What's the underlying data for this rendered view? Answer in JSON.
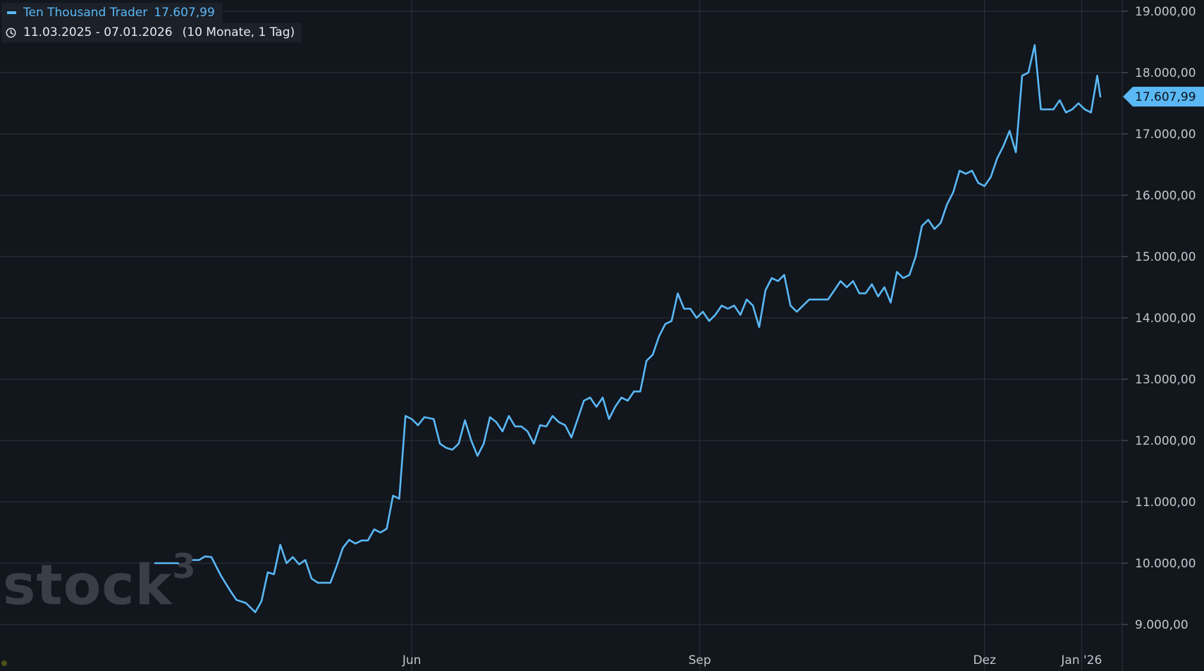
{
  "legend": {
    "series_name": "Ten Thousand Trader",
    "series_value": "17.607,99"
  },
  "range": {
    "dates": "11.03.2025 - 07.01.2026",
    "duration": "(10 Monate, 1 Tag)"
  },
  "watermark": {
    "text": "stock",
    "superscript": "3"
  },
  "colors": {
    "background": "#12161d",
    "grid": "#2f343d",
    "line": "#5ab8f5",
    "axis_text": "#c3c7cd",
    "watermark": "#3a3f47"
  },
  "chart_data": {
    "type": "line",
    "series": [
      {
        "name": "Ten Thousand Trader",
        "points": [
          [
            "2025-03-11",
            10000
          ],
          [
            "2025-03-14",
            10000
          ],
          [
            "2025-03-18",
            10000
          ],
          [
            "2025-03-20",
            9970
          ],
          [
            "2025-03-22",
            10050
          ],
          [
            "2025-03-25",
            10050
          ],
          [
            "2025-03-27",
            10110
          ],
          [
            "2025-03-29",
            10100
          ],
          [
            "2025-04-01",
            9800
          ],
          [
            "2025-04-04",
            9550
          ],
          [
            "2025-04-06",
            9400
          ],
          [
            "2025-04-09",
            9350
          ],
          [
            "2025-04-12",
            9200
          ],
          [
            "2025-04-14",
            9380
          ],
          [
            "2025-04-16",
            9850
          ],
          [
            "2025-04-18",
            9820
          ],
          [
            "2025-04-20",
            10300
          ],
          [
            "2025-04-22",
            10000
          ],
          [
            "2025-04-24",
            10100
          ],
          [
            "2025-04-26",
            9980
          ],
          [
            "2025-04-28",
            10050
          ],
          [
            "2025-04-30",
            9750
          ],
          [
            "2025-05-02",
            9680
          ],
          [
            "2025-05-06",
            9680
          ],
          [
            "2025-05-08",
            9950
          ],
          [
            "2025-05-10",
            10250
          ],
          [
            "2025-05-12",
            10380
          ],
          [
            "2025-05-14",
            10320
          ],
          [
            "2025-05-16",
            10370
          ],
          [
            "2025-05-18",
            10370
          ],
          [
            "2025-05-20",
            10550
          ],
          [
            "2025-05-22",
            10500
          ],
          [
            "2025-05-24",
            10560
          ],
          [
            "2025-05-26",
            11100
          ],
          [
            "2025-05-28",
            11050
          ],
          [
            "2025-05-30",
            12400
          ],
          [
            "2025-06-01",
            12350
          ],
          [
            "2025-06-03",
            12250
          ],
          [
            "2025-06-05",
            12380
          ],
          [
            "2025-06-08",
            12350
          ],
          [
            "2025-06-10",
            11950
          ],
          [
            "2025-06-12",
            11880
          ],
          [
            "2025-06-14",
            11850
          ],
          [
            "2025-06-16",
            11950
          ],
          [
            "2025-06-18",
            12330
          ],
          [
            "2025-06-20",
            12000
          ],
          [
            "2025-06-22",
            11750
          ],
          [
            "2025-06-24",
            11950
          ],
          [
            "2025-06-26",
            12380
          ],
          [
            "2025-06-28",
            12300
          ],
          [
            "2025-06-30",
            12150
          ],
          [
            "2025-07-02",
            12400
          ],
          [
            "2025-07-04",
            12230
          ],
          [
            "2025-07-06",
            12230
          ],
          [
            "2025-07-08",
            12150
          ],
          [
            "2025-07-10",
            11950
          ],
          [
            "2025-07-12",
            12250
          ],
          [
            "2025-07-14",
            12230
          ],
          [
            "2025-07-16",
            12400
          ],
          [
            "2025-07-18",
            12300
          ],
          [
            "2025-07-20",
            12250
          ],
          [
            "2025-07-22",
            12050
          ],
          [
            "2025-07-24",
            12350
          ],
          [
            "2025-07-26",
            12650
          ],
          [
            "2025-07-28",
            12700
          ],
          [
            "2025-07-30",
            12550
          ],
          [
            "2025-08-01",
            12700
          ],
          [
            "2025-08-03",
            12350
          ],
          [
            "2025-08-05",
            12550
          ],
          [
            "2025-08-07",
            12700
          ],
          [
            "2025-08-09",
            12650
          ],
          [
            "2025-08-11",
            12800
          ],
          [
            "2025-08-13",
            12800
          ],
          [
            "2025-08-15",
            13300
          ],
          [
            "2025-08-17",
            13400
          ],
          [
            "2025-08-19",
            13700
          ],
          [
            "2025-08-21",
            13900
          ],
          [
            "2025-08-23",
            13950
          ],
          [
            "2025-08-25",
            14400
          ],
          [
            "2025-08-27",
            14150
          ],
          [
            "2025-08-29",
            14150
          ],
          [
            "2025-08-31",
            14000
          ],
          [
            "2025-09-02",
            14100
          ],
          [
            "2025-09-04",
            13950
          ],
          [
            "2025-09-06",
            14050
          ],
          [
            "2025-09-08",
            14200
          ],
          [
            "2025-09-10",
            14150
          ],
          [
            "2025-09-12",
            14200
          ],
          [
            "2025-09-14",
            14050
          ],
          [
            "2025-09-16",
            14300
          ],
          [
            "2025-09-18",
            14200
          ],
          [
            "2025-09-20",
            13850
          ],
          [
            "2025-09-22",
            14450
          ],
          [
            "2025-09-24",
            14650
          ],
          [
            "2025-09-26",
            14600
          ],
          [
            "2025-09-28",
            14700
          ],
          [
            "2025-09-30",
            14200
          ],
          [
            "2025-10-02",
            14100
          ],
          [
            "2025-10-04",
            14200
          ],
          [
            "2025-10-06",
            14300
          ],
          [
            "2025-10-08",
            14300
          ],
          [
            "2025-10-10",
            14300
          ],
          [
            "2025-10-12",
            14300
          ],
          [
            "2025-10-14",
            14450
          ],
          [
            "2025-10-16",
            14600
          ],
          [
            "2025-10-18",
            14500
          ],
          [
            "2025-10-20",
            14600
          ],
          [
            "2025-10-22",
            14400
          ],
          [
            "2025-10-24",
            14400
          ],
          [
            "2025-10-26",
            14550
          ],
          [
            "2025-10-28",
            14350
          ],
          [
            "2025-10-30",
            14500
          ],
          [
            "2025-11-01",
            14250
          ],
          [
            "2025-11-03",
            14750
          ],
          [
            "2025-11-05",
            14650
          ],
          [
            "2025-11-07",
            14700
          ],
          [
            "2025-11-09",
            15000
          ],
          [
            "2025-11-11",
            15500
          ],
          [
            "2025-11-13",
            15600
          ],
          [
            "2025-11-15",
            15450
          ],
          [
            "2025-11-17",
            15550
          ],
          [
            "2025-11-19",
            15850
          ],
          [
            "2025-11-21",
            16050
          ],
          [
            "2025-11-23",
            16400
          ],
          [
            "2025-11-25",
            16350
          ],
          [
            "2025-11-27",
            16400
          ],
          [
            "2025-11-29",
            16200
          ],
          [
            "2025-12-01",
            16150
          ],
          [
            "2025-12-03",
            16300
          ],
          [
            "2025-12-05",
            16600
          ],
          [
            "2025-12-07",
            16800
          ],
          [
            "2025-12-09",
            17050
          ],
          [
            "2025-12-11",
            16700
          ],
          [
            "2025-12-13",
            17950
          ],
          [
            "2025-12-15",
            18000
          ],
          [
            "2025-12-17",
            18450
          ],
          [
            "2025-12-19",
            17400
          ],
          [
            "2025-12-21",
            17400
          ],
          [
            "2025-12-23",
            17400
          ],
          [
            "2025-12-25",
            17550
          ],
          [
            "2025-12-27",
            17350
          ],
          [
            "2025-12-29",
            17400
          ],
          [
            "2025-12-31",
            17500
          ],
          [
            "2026-01-02",
            17400
          ],
          [
            "2026-01-04",
            17350
          ],
          [
            "2026-01-06",
            17950
          ],
          [
            "2026-01-07",
            17608
          ]
        ]
      }
    ],
    "x_axis_labels": [
      "Jun",
      "Sep",
      "Dez",
      "Jan '26"
    ],
    "y_axis_labels": [
      "9.000,00",
      "10.000,00",
      "11.000,00",
      "12.000,00",
      "13.000,00",
      "14.000,00",
      "15.000,00",
      "16.000,00",
      "17.000,00",
      "18.000,00",
      "19.000,00"
    ],
    "ylim": [
      8500,
      19250
    ],
    "last_value_label": "17.607,99",
    "grid": true,
    "y_axis_position": "right"
  }
}
